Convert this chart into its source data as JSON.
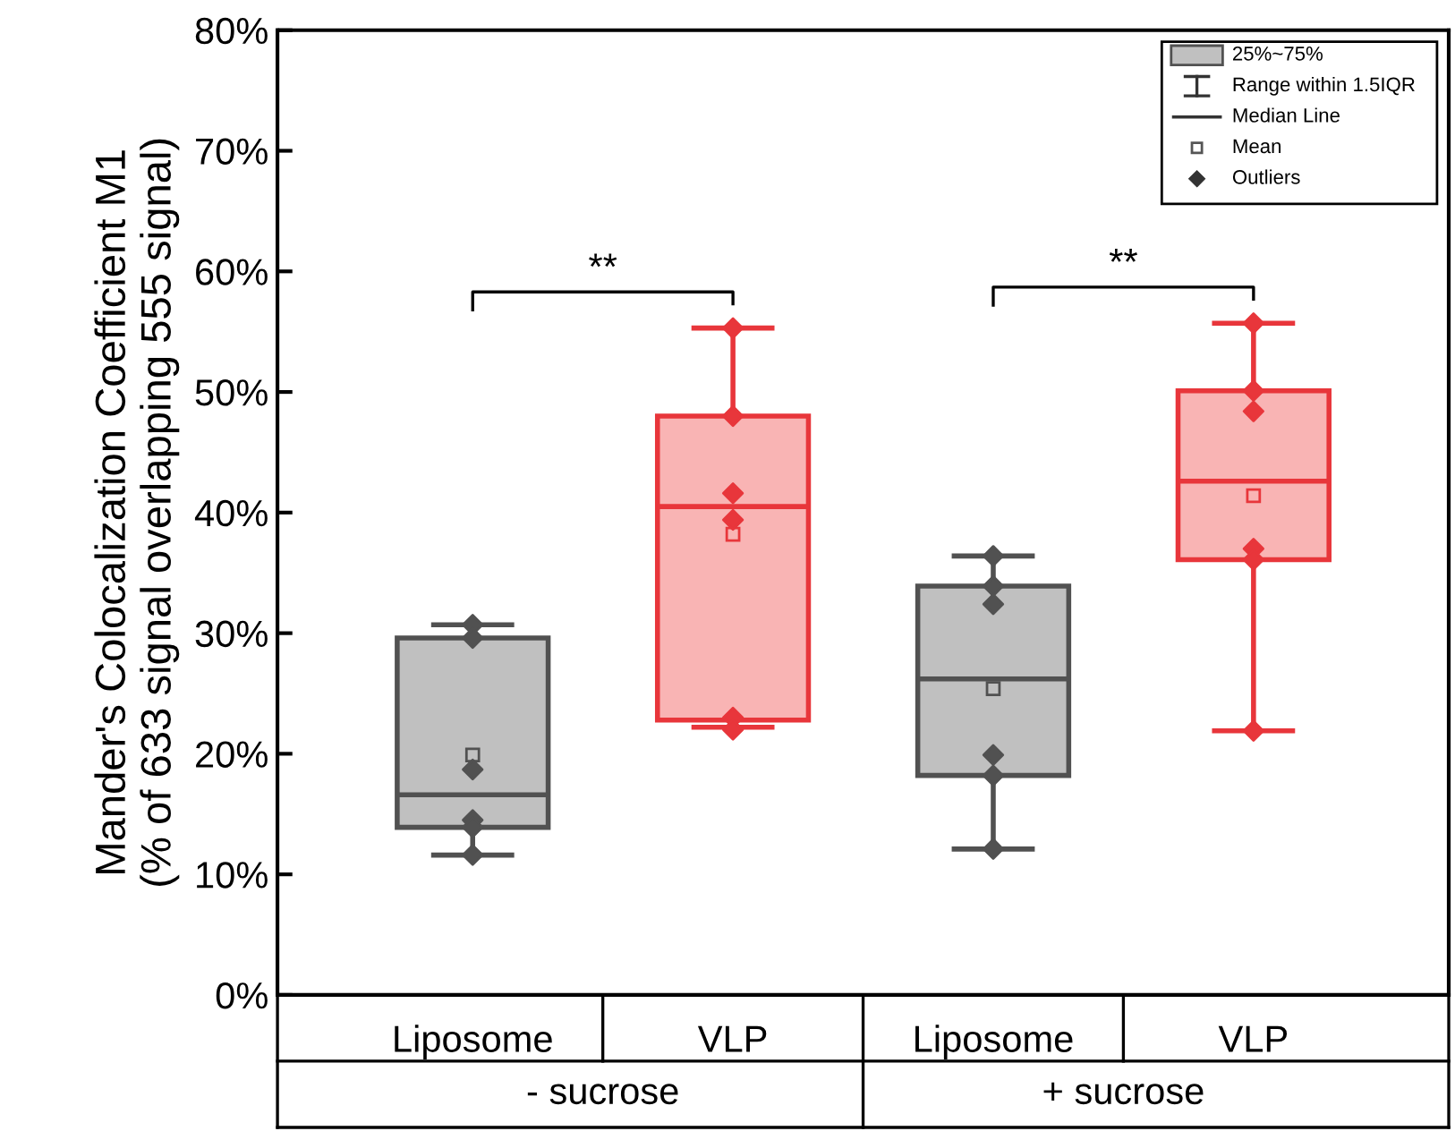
{
  "chart_data": {
    "type": "box",
    "ylabel": "Mander's Colocalization Coefficient M1\n(% of 633 signal overlapping 555 signal)",
    "categories": [
      "Liposome",
      "VLP",
      "Liposome",
      "VLP"
    ],
    "colors": [
      "#c0c0c0",
      "#f9b4b4",
      "#c0c0c0",
      "#f9b4b4"
    ],
    "boxes": [
      {
        "low": 11.6,
        "q1": 13.9,
        "median": 16.6,
        "q3": 29.6,
        "high": 30.7,
        "mean": 19.9,
        "outliers": [
          30.7,
          29.6,
          18.7,
          14.5,
          13.9,
          11.6
        ]
      },
      {
        "low": 22.2,
        "q1": 22.8,
        "median": 40.5,
        "q3": 48.0,
        "high": 55.3,
        "mean": 38.2,
        "outliers": [
          55.3,
          48.0,
          41.6,
          39.4,
          23.0,
          22.0
        ]
      },
      {
        "low": 12.1,
        "q1": 18.2,
        "median": 26.2,
        "q3": 33.9,
        "high": 36.4,
        "mean": 25.4,
        "outliers": [
          36.4,
          33.9,
          32.4,
          19.9,
          18.2,
          12.1
        ]
      },
      {
        "low": 21.9,
        "q1": 36.1,
        "median": 42.6,
        "q3": 50.1,
        "high": 55.7,
        "mean": 41.4,
        "outliers": [
          55.7,
          50.1,
          48.4,
          37.0,
          36.1,
          21.9
        ]
      }
    ],
    "ylim": [
      0,
      80
    ],
    "yticks": [
      {
        "value": 0,
        "label": "0%"
      },
      {
        "value": 10,
        "label": "10%"
      },
      {
        "value": 20,
        "label": "20%"
      },
      {
        "value": 30,
        "label": "30%"
      },
      {
        "value": 40,
        "label": "40%"
      },
      {
        "value": 50,
        "label": "50%"
      },
      {
        "value": 60,
        "label": "60%"
      },
      {
        "value": 70,
        "label": "70%"
      },
      {
        "value": 80,
        "label": "80%"
      }
    ],
    "annotations": [
      "**",
      "**",
      "- sucrose",
      "+ sucrose",
      "25%~75%",
      "Range within 1.5IQR",
      "Median Line",
      "Mean",
      "Outliers"
    ],
    "grid": false,
    "marker": "diamond"
  }
}
